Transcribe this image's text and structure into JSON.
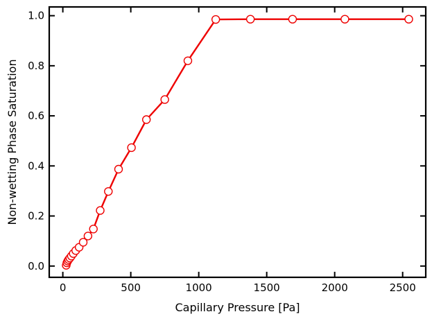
{
  "chart_data": {
    "type": "line",
    "title": "",
    "xlabel": "Capillary Pressure [Pa]",
    "ylabel": "Non-wetting Phase Saturation",
    "xlim": [
      -100,
      2670
    ],
    "ylim": [
      -0.045,
      1.035
    ],
    "xticks": [
      0,
      500,
      1000,
      1500,
      2000,
      2500
    ],
    "xtick_labels": [
      "0",
      "500",
      "1000",
      "1500",
      "2000",
      "2500"
    ],
    "yticks": [
      0.0,
      0.2,
      0.4,
      0.6,
      0.8,
      1.0
    ],
    "ytick_labels": [
      "0.0",
      "0.2",
      "0.4",
      "0.6",
      "0.8",
      "1.0"
    ],
    "grid": false,
    "series": [
      {
        "color": "#ee0000",
        "marker": "circle-open",
        "x": [
          25,
          30,
          36,
          43,
          52,
          63,
          77,
          95,
          120,
          150,
          185,
          225,
          275,
          335,
          410,
          505,
          615,
          750,
          920,
          1125,
          1380,
          1690,
          2075,
          2545
        ],
        "y": [
          0.003,
          0.013,
          0.02,
          0.026,
          0.032,
          0.04,
          0.05,
          0.062,
          0.075,
          0.095,
          0.12,
          0.148,
          0.222,
          0.298,
          0.387,
          0.473,
          0.585,
          0.665,
          0.82,
          0.985,
          0.986,
          0.986,
          0.986,
          0.986
        ]
      }
    ]
  }
}
